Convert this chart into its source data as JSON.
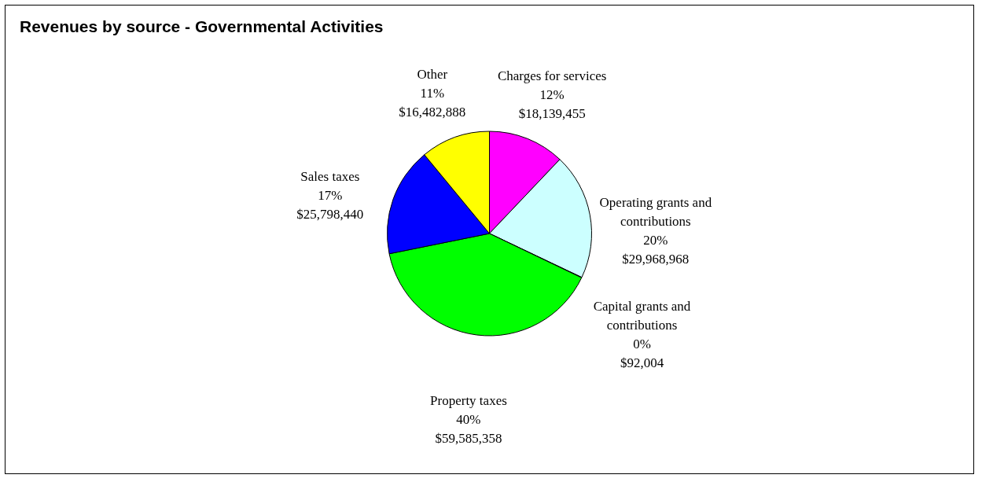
{
  "chart_data": {
    "type": "pie",
    "title": "Revenues by source - Governmental Activities",
    "categories": [
      "Charges for services",
      "Operating grants and contributions",
      "Capital grants and contributions",
      "Property taxes",
      "Sales taxes",
      "Other"
    ],
    "values": [
      18139455,
      29968968,
      92004,
      59585358,
      25798440,
      16482888
    ],
    "colors": [
      "#ff00ff",
      "#ccffff",
      "#669999",
      "#00ff00",
      "#0000ff",
      "#ffff00"
    ],
    "value_labels": [
      "12%\n$18,139,455",
      "20%\n$29,968,968",
      "0%\n$92,004",
      "40%\n$59,585,358",
      "17%\n$25,798,440",
      "11%\n$16,482,888"
    ]
  }
}
